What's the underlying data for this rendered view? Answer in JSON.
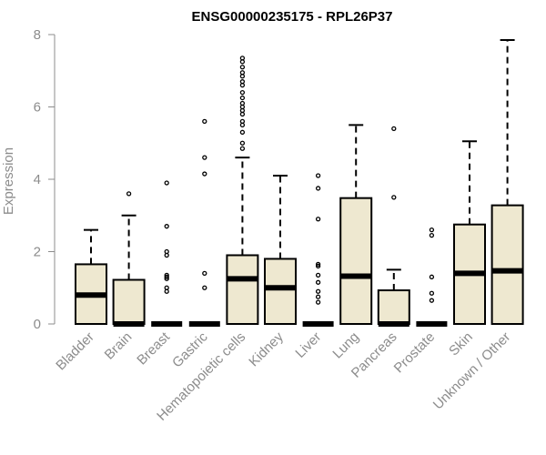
{
  "chart_data": {
    "type": "boxplot",
    "title": "ENSG00000235175 - RPL26P37",
    "xlabel": "",
    "ylabel": "Expression",
    "ylim": [
      0,
      8
    ],
    "yticks": [
      0,
      2,
      4,
      6,
      8
    ],
    "grid": false,
    "box_color": "#EEE8D0",
    "stroke_color": "#000000",
    "label_color": "#8c8c8c",
    "categories": [
      "Bladder",
      "Brain",
      "Breast",
      "Gastric",
      "Hematopoietic cells",
      "Kidney",
      "Liver",
      "Lung",
      "Pancreas",
      "Prostate",
      "Skin",
      "Unknown / Other"
    ],
    "boxes": [
      {
        "category": "Bladder",
        "whisker_low": 0,
        "q1": 0,
        "median": 0.8,
        "q3": 1.65,
        "whisker_high": 2.6,
        "outliers": []
      },
      {
        "category": "Brain",
        "whisker_low": 0,
        "q1": 0,
        "median": 0,
        "q3": 1.22,
        "whisker_high": 3.0,
        "outliers": [
          3.6
        ]
      },
      {
        "category": "Breast",
        "whisker_low": 0,
        "q1": 0,
        "median": 0,
        "q3": 0,
        "whisker_high": 0,
        "outliers": [
          3.9,
          2.7,
          2.0,
          1.9,
          1.35,
          1.3,
          1.25,
          1.0,
          0.9
        ]
      },
      {
        "category": "Gastric",
        "whisker_low": 0,
        "q1": 0,
        "median": 0,
        "q3": 0,
        "whisker_high": 0,
        "outliers": [
          5.6,
          4.6,
          4.15,
          1.4,
          1.0
        ]
      },
      {
        "category": "Hematopoietic cells",
        "whisker_low": 0,
        "q1": 0,
        "median": 1.25,
        "q3": 1.9,
        "whisker_high": 4.6,
        "outliers": [
          7.35,
          7.25,
          7.1,
          6.95,
          6.85,
          6.7,
          6.6,
          6.4,
          6.25,
          6.1,
          6.0,
          5.9,
          5.8,
          5.6,
          5.5,
          5.3,
          5.0,
          4.85
        ]
      },
      {
        "category": "Kidney",
        "whisker_low": 0,
        "q1": 0,
        "median": 1.0,
        "q3": 1.8,
        "whisker_high": 4.1,
        "outliers": []
      },
      {
        "category": "Liver",
        "whisker_low": 0,
        "q1": 0,
        "median": 0,
        "q3": 0,
        "whisker_high": 0,
        "outliers": [
          4.1,
          3.75,
          2.9,
          1.65,
          1.6,
          1.35,
          1.15,
          0.9,
          0.75,
          0.6
        ]
      },
      {
        "category": "Lung",
        "whisker_low": 0,
        "q1": 0,
        "median": 1.32,
        "q3": 3.48,
        "whisker_high": 5.5,
        "outliers": []
      },
      {
        "category": "Pancreas",
        "whisker_low": 0,
        "q1": 0,
        "median": 0,
        "q3": 0.93,
        "whisker_high": 1.5,
        "outliers": [
          5.4,
          3.5
        ]
      },
      {
        "category": "Prostate",
        "whisker_low": 0,
        "q1": 0,
        "median": 0,
        "q3": 0,
        "whisker_high": 0,
        "outliers": [
          2.6,
          2.45,
          1.3,
          0.85,
          0.65
        ]
      },
      {
        "category": "Skin",
        "whisker_low": 0,
        "q1": 0,
        "median": 1.4,
        "q3": 2.75,
        "whisker_high": 5.05,
        "outliers": []
      },
      {
        "category": "Unknown / Other",
        "whisker_low": 0,
        "q1": 0,
        "median": 1.47,
        "q3": 3.28,
        "whisker_high": 7.85,
        "outliers": []
      }
    ]
  }
}
